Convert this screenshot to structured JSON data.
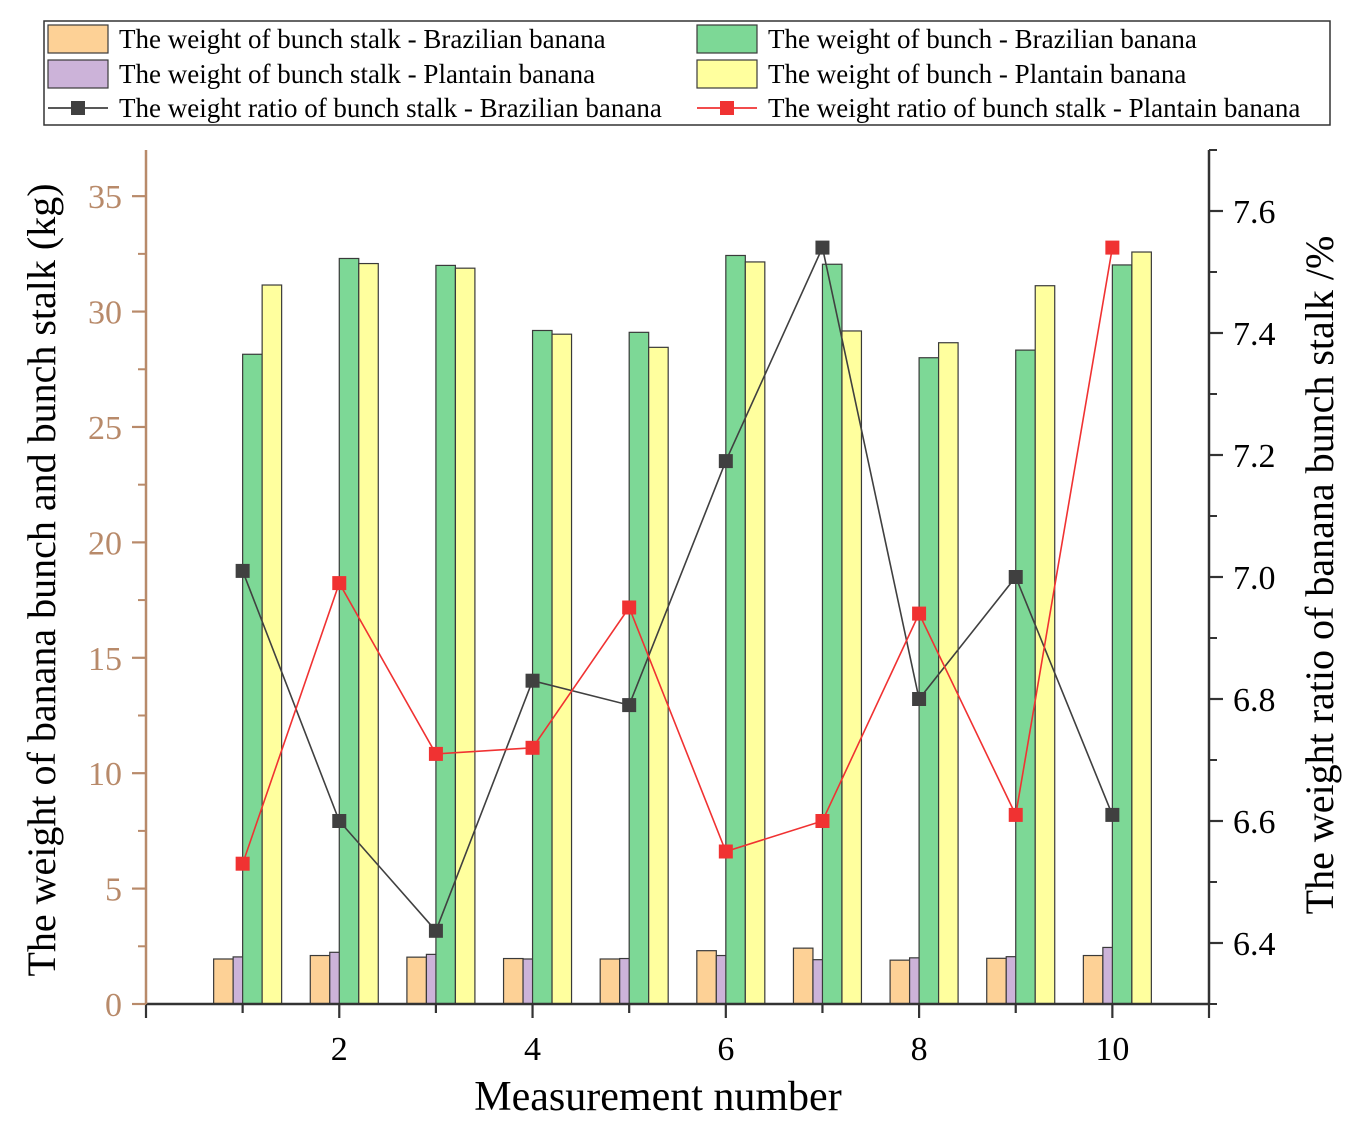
{
  "chart_data": {
    "type": "bar",
    "title": "",
    "xlabel": "Measurement number",
    "ylabel_left": "The weight of banana bunch and bunch stalk (kg)",
    "ylabel_right": "The weight ratio of banana bunch stalk /%",
    "x": [
      1,
      2,
      3,
      4,
      5,
      6,
      7,
      8,
      9,
      10
    ],
    "x_tick_labels": [
      "2",
      "4",
      "6",
      "8",
      "10"
    ],
    "x_tick_values": [
      2,
      4,
      6,
      8,
      10
    ],
    "xlim": [
      0,
      11
    ],
    "ylim_left": [
      0,
      37
    ],
    "y_left_ticks": [
      0,
      5,
      10,
      15,
      20,
      25,
      30,
      35
    ],
    "ylim_right": [
      6.3,
      7.7
    ],
    "y_right_ticks": [
      6.4,
      6.6,
      6.8,
      7.0,
      7.2,
      7.4,
      7.6
    ],
    "y_right_tick_labels": [
      "6.4",
      "6.6",
      "6.8",
      "7.0",
      "7.2",
      "7.4",
      "7.6"
    ],
    "legend_position": "top",
    "bar_series": [
      {
        "name": "The weight of bunch stalk - Brazilian banana",
        "color": "#FDD196",
        "values": [
          1.95,
          2.1,
          2.03,
          1.97,
          1.95,
          2.31,
          2.42,
          1.9,
          1.98,
          2.1
        ]
      },
      {
        "name": "The weight of bunch stalk - Plantain banana",
        "color": "#CCB3D9",
        "values": [
          2.04,
          2.24,
          2.15,
          1.95,
          1.97,
          2.1,
          1.92,
          2.0,
          2.05,
          2.45
        ]
      },
      {
        "name": "The weight of bunch - Brazilian banana",
        "color": "#7DD896",
        "values": [
          28.15,
          32.3,
          32.0,
          29.18,
          29.1,
          32.43,
          32.05,
          28.0,
          28.33,
          32.02
        ]
      },
      {
        "name": "The weight of bunch - Plantain banana",
        "color": "#FFFF9E",
        "values": [
          31.15,
          32.08,
          31.88,
          29.02,
          28.45,
          32.15,
          29.16,
          28.65,
          31.12,
          32.58
        ]
      }
    ],
    "line_series": [
      {
        "name": "The weight ratio of bunch stalk - Brazilian banana",
        "color": "#404040",
        "values": [
          7.01,
          6.6,
          6.42,
          6.83,
          6.79,
          7.19,
          7.54,
          6.8,
          7.0,
          6.61
        ]
      },
      {
        "name": "The weight ratio of bunch stalk - Plantain banana",
        "color": "#F03232",
        "values": [
          6.53,
          6.99,
          6.71,
          6.72,
          6.95,
          6.55,
          6.6,
          6.94,
          6.61,
          7.54
        ]
      }
    ],
    "legend": [
      {
        "label": "The weight of bunch stalk - Brazilian banana",
        "kind": "bar",
        "color": "#FDD196"
      },
      {
        "label": "The weight of bunch - Brazilian banana",
        "kind": "bar",
        "color": "#7DD896"
      },
      {
        "label": "The weight of bunch stalk - Plantain banana",
        "kind": "bar",
        "color": "#CCB3D9"
      },
      {
        "label": "The weight of bunch - Plantain banana",
        "kind": "bar",
        "color": "#FFFF9E"
      },
      {
        "label": "The weight ratio of bunch stalk - Brazilian banana",
        "kind": "line",
        "color": "#404040"
      },
      {
        "label": "The weight ratio of bunch stalk - Plantain banana",
        "kind": "line",
        "color": "#F03232"
      }
    ],
    "colors": {
      "left_axis": "#B88A6A",
      "right_axis": "#333333",
      "axis_text": "#000000"
    }
  }
}
